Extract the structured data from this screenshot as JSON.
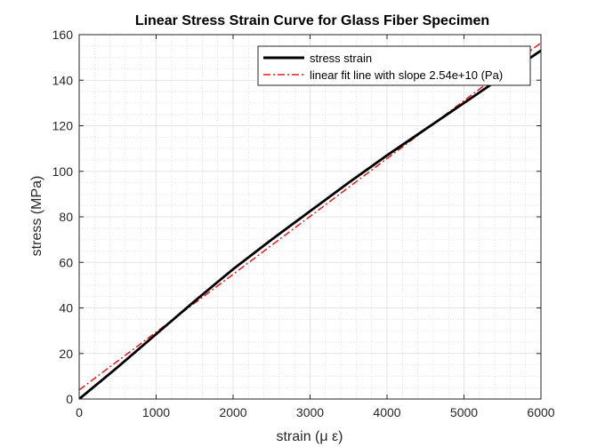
{
  "chart_data": {
    "type": "line",
    "title": "Linear Stress Strain Curve for Glass Fiber Specimen",
    "xlabel": "strain (μ ε)",
    "ylabel": "stress (MPa)",
    "xlim": [
      0,
      6000
    ],
    "ylim": [
      0,
      160
    ],
    "xticks": [
      "0",
      "1000",
      "2000",
      "3000",
      "4000",
      "5000",
      "6000"
    ],
    "yticks": [
      "0",
      "20",
      "40",
      "60",
      "80",
      "100",
      "120",
      "140",
      "160"
    ],
    "grid": true,
    "minor_grid": true,
    "legend_position": "top-right",
    "series": [
      {
        "name": "stress strain",
        "color": "#000000",
        "style": "solid",
        "x": [
          0,
          500,
          1000,
          1500,
          2000,
          2500,
          3000,
          3500,
          4000,
          4500,
          5000,
          5500,
          6000
        ],
        "y": [
          0,
          14,
          28.5,
          43,
          57,
          70,
          82.5,
          95,
          107,
          118.5,
          130,
          141.5,
          153
        ]
      },
      {
        "name": "linear fit line with slope 2.54e+10 (Pa)",
        "color": "#e41a1c",
        "style": "dash-dot",
        "x": [
          0,
          6000
        ],
        "y": [
          4,
          156.4
        ]
      }
    ]
  }
}
